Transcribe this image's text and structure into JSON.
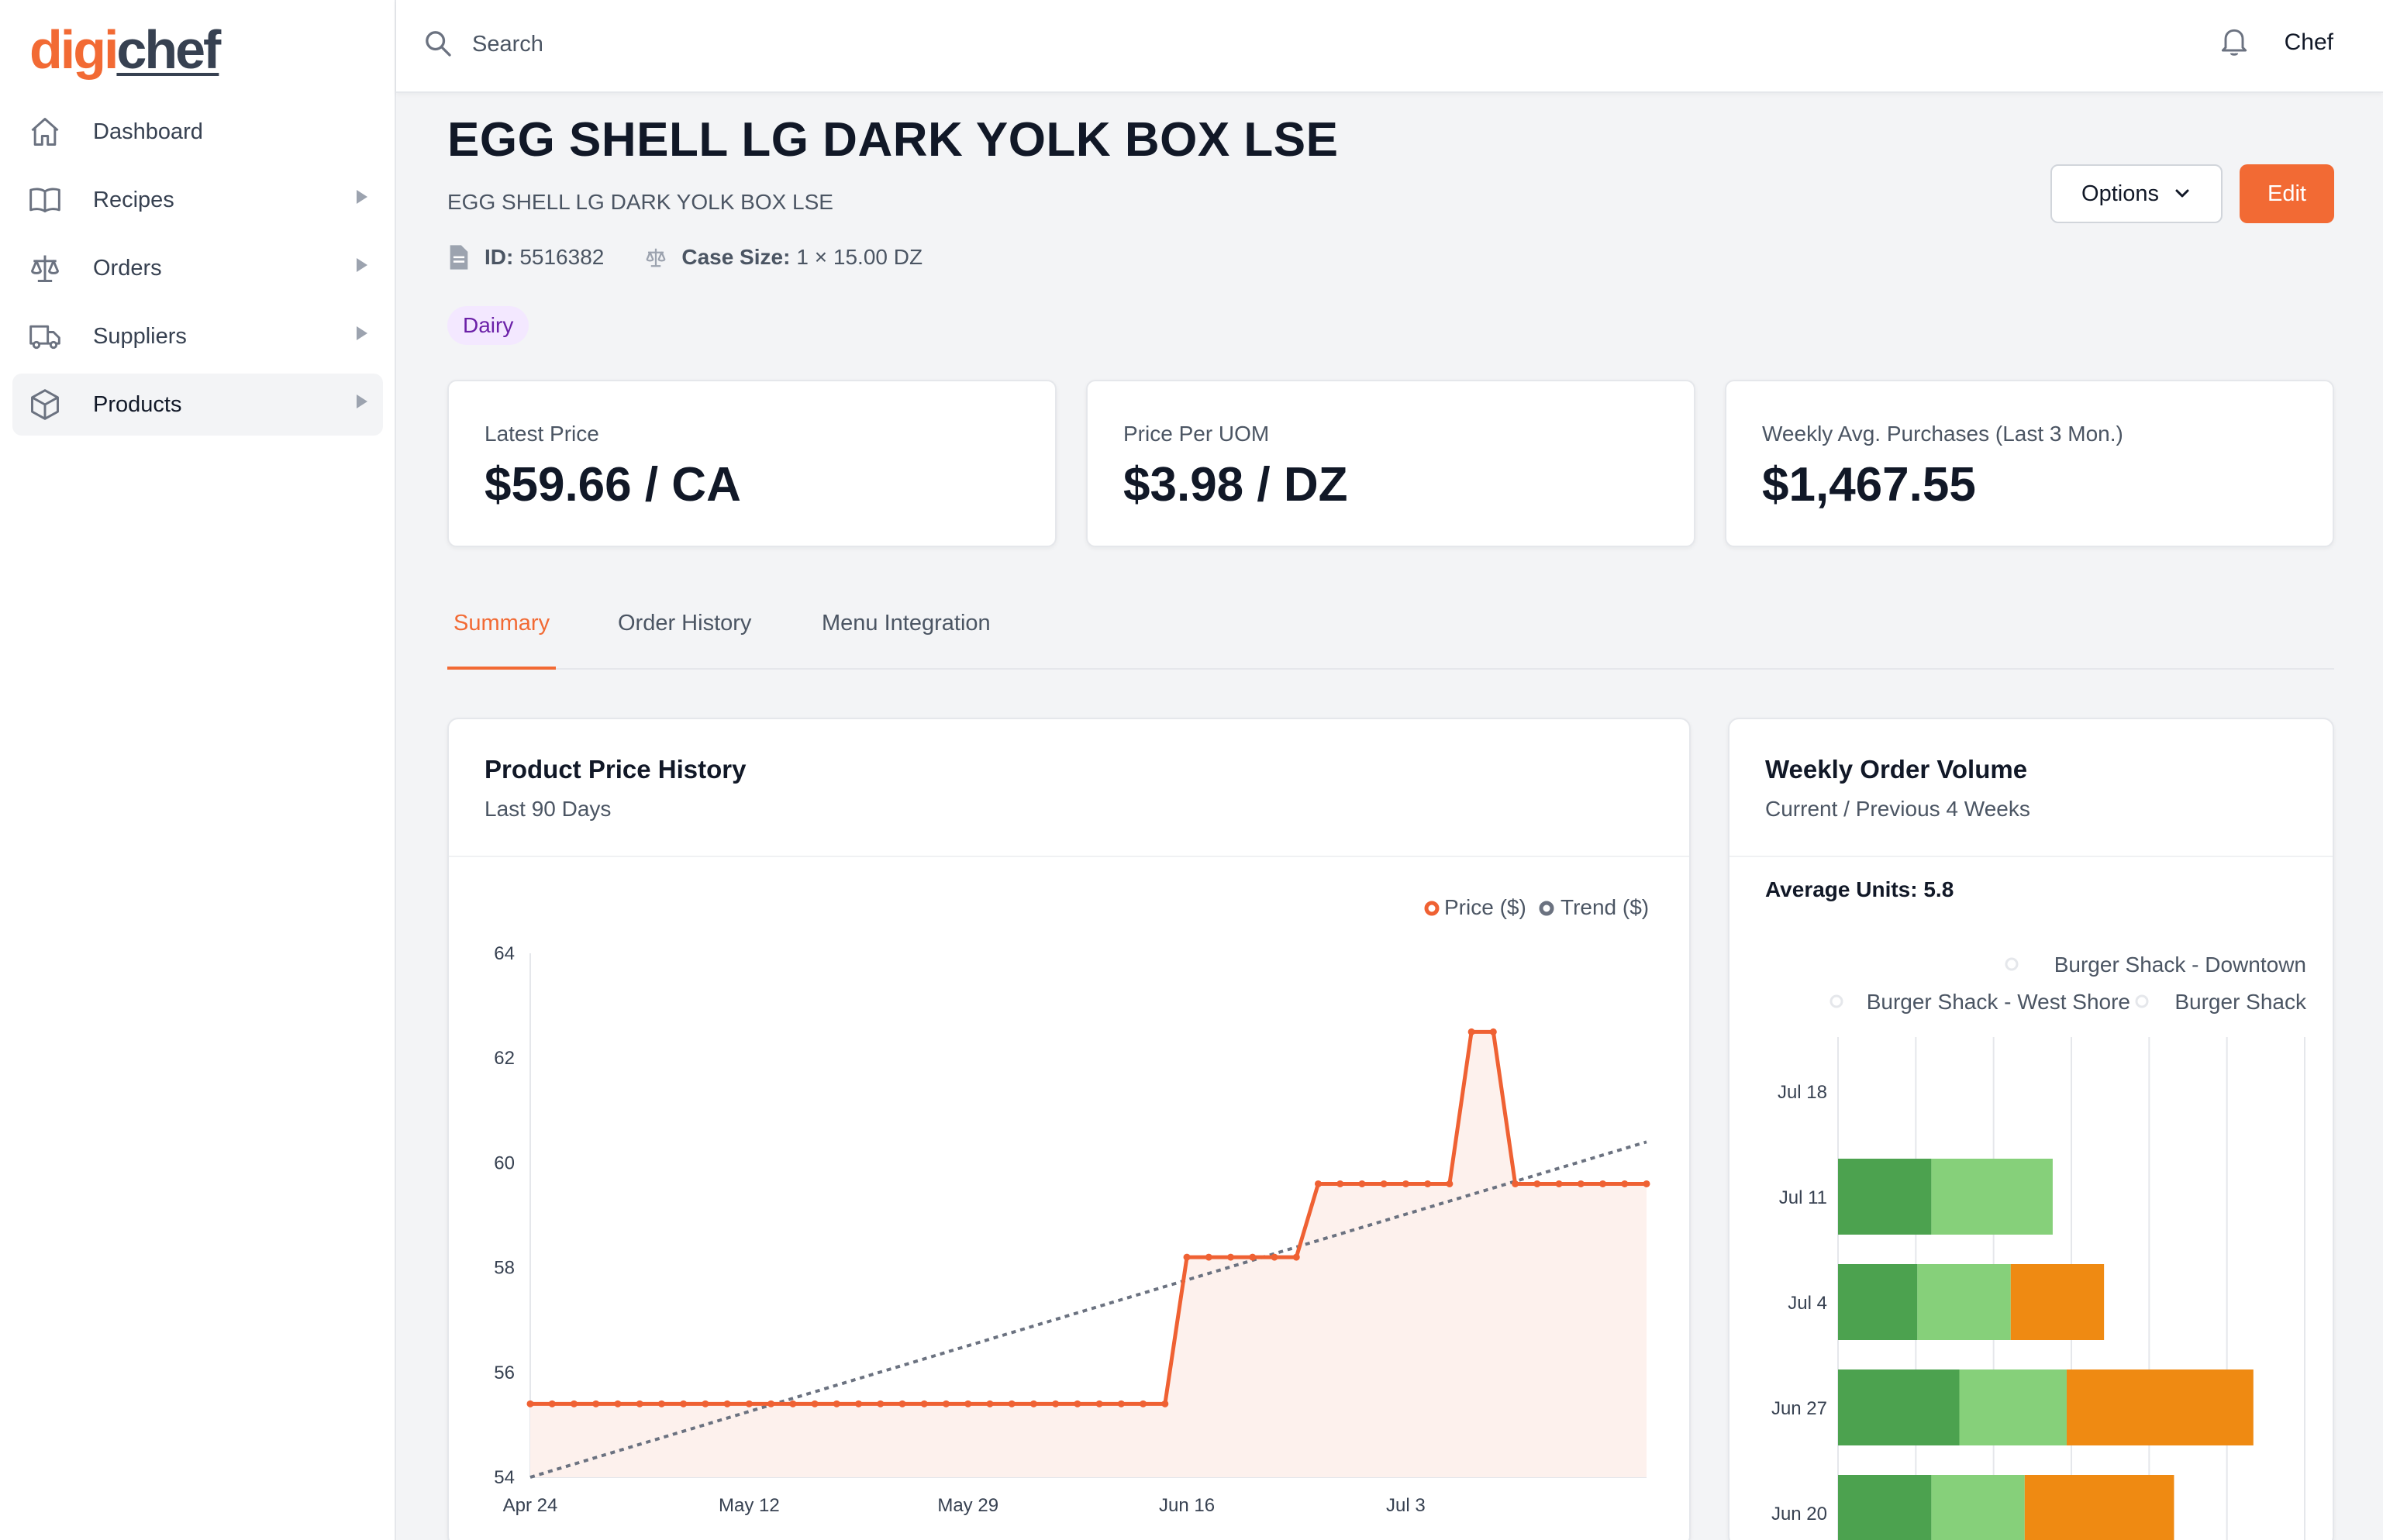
{
  "app": {
    "logo_part1": "digi",
    "logo_part2": "chef"
  },
  "sidebar": {
    "items": [
      {
        "label": "Dashboard",
        "icon": "home-icon",
        "has_submenu": false,
        "active": false
      },
      {
        "label": "Recipes",
        "icon": "book-icon",
        "has_submenu": true,
        "active": false
      },
      {
        "label": "Orders",
        "icon": "scale-icon",
        "has_submenu": true,
        "active": false
      },
      {
        "label": "Suppliers",
        "icon": "truck-icon",
        "has_submenu": true,
        "active": false
      },
      {
        "label": "Products",
        "icon": "cube-icon",
        "has_submenu": true,
        "active": true
      }
    ]
  },
  "topbar": {
    "search_placeholder": "Search",
    "user_name": "Chef"
  },
  "product": {
    "title": "EGG SHELL LG DARK YOLK BOX LSE",
    "subtitle": "EGG SHELL LG DARK YOLK BOX LSE",
    "id_label": "ID:",
    "id_value": "5516382",
    "case_size_label": "Case Size:",
    "case_size_value": "1 × 15.00 DZ",
    "category": "Dairy"
  },
  "actions": {
    "options_label": "Options",
    "edit_label": "Edit"
  },
  "stats": [
    {
      "label": "Latest Price",
      "value": "$59.66 / CA"
    },
    {
      "label": "Price Per UOM",
      "value": "$3.98 / DZ"
    },
    {
      "label": "Weekly Avg. Purchases (Last 3 Mon.)",
      "value": "$1,467.55"
    }
  ],
  "tabs": [
    {
      "label": "Summary",
      "active": true
    },
    {
      "label": "Order History",
      "active": false
    },
    {
      "label": "Menu Integration",
      "active": false
    }
  ],
  "colors": {
    "accent": "#f26a34",
    "price_line": "#ef6133",
    "price_fill": "#fdf1ed",
    "trend_line": "#6b7280",
    "bar_downtown": "#4ca24f",
    "bar_westshore": "#86d07a",
    "bar_shack": "#ef8a12"
  },
  "price_history": {
    "title": "Product Price History",
    "subtitle": "Last 90 Days",
    "chart_data": {
      "type": "line",
      "series": [
        {
          "name": "Price ($)",
          "values": [
            55.4,
            55.4,
            55.4,
            55.4,
            55.4,
            55.4,
            55.4,
            55.4,
            55.4,
            55.4,
            55.4,
            55.4,
            55.4,
            55.4,
            55.4,
            55.4,
            55.4,
            55.4,
            55.4,
            55.4,
            55.4,
            55.4,
            55.4,
            55.4,
            55.4,
            55.4,
            55.4,
            55.4,
            55.4,
            55.4,
            58.2,
            58.2,
            58.2,
            58.2,
            58.2,
            58.2,
            59.6,
            59.6,
            59.6,
            59.6,
            59.6,
            59.6,
            59.6,
            62.5,
            62.5,
            59.6,
            59.6,
            59.6,
            59.6,
            59.6,
            59.6,
            59.6
          ]
        },
        {
          "name": "Trend ($)",
          "values": [
            54.0,
            60.4
          ]
        }
      ],
      "x_ticks": [
        "Apr 24",
        "May 12",
        "May 29",
        "Jun 16",
        "Jul 3"
      ],
      "x_tick_indices": [
        0,
        10,
        20,
        30,
        40
      ],
      "x_count": 52,
      "y_ticks": [
        54,
        56,
        58,
        60,
        62,
        64
      ],
      "ylim": [
        54,
        64
      ],
      "legend_position": "top-right",
      "grid": false
    }
  },
  "order_volume": {
    "title": "Weekly Order Volume",
    "subtitle": "Current / Previous 4 Weeks",
    "average_units": "Average Units: 5.8",
    "chart_data": {
      "type": "bar",
      "orientation": "horizontal",
      "stacked": true,
      "categories": [
        "Jul 18",
        "Jul 11",
        "Jul 4",
        "Jun 27",
        "Jun 20"
      ],
      "series": [
        {
          "name": "Burger Shack - Downtown",
          "values": [
            0,
            1.0,
            0.85,
            1.3,
            1.0
          ]
        },
        {
          "name": "Burger Shack - West Shore",
          "values": [
            0,
            1.3,
            1.0,
            1.15,
            1.0
          ]
        },
        {
          "name": "Burger Shack",
          "values": [
            0,
            0,
            1.0,
            2.0,
            1.6
          ]
        }
      ],
      "xlim": [
        0,
        5
      ],
      "legend_position": "top-right",
      "grid": true
    }
  }
}
